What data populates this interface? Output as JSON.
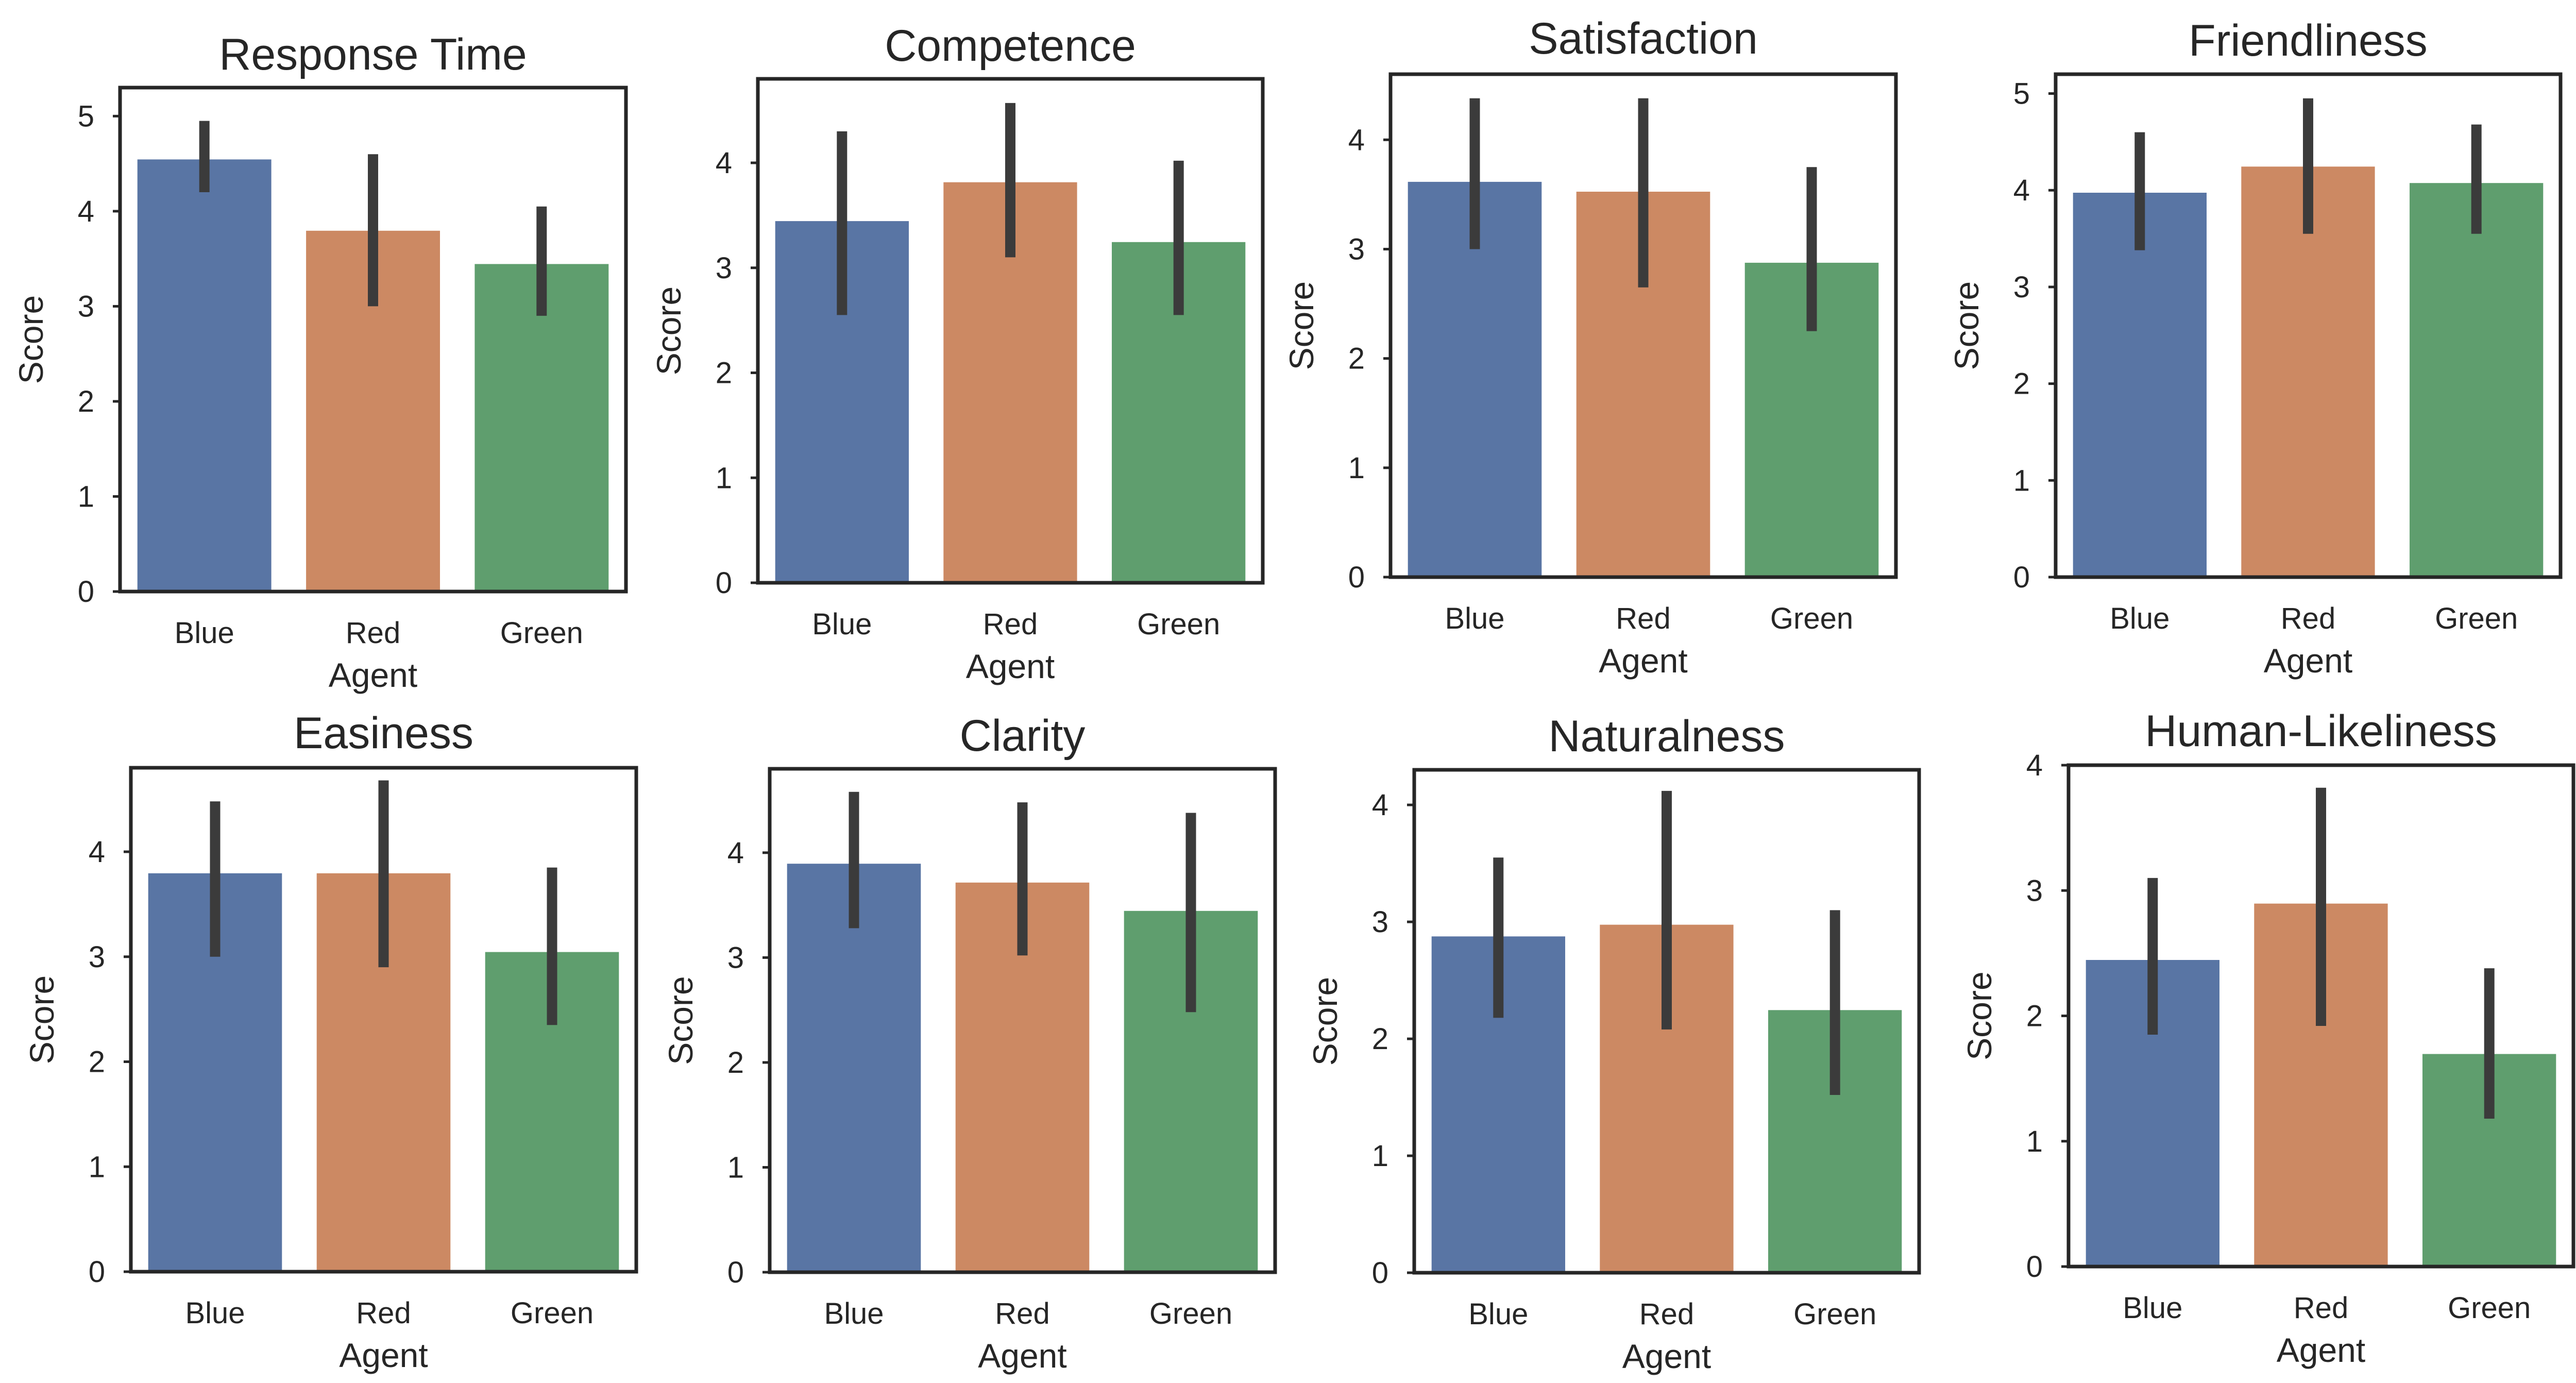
{
  "figure": {
    "colors": {
      "Blue": "#5975a4",
      "Red": "#cc8963",
      "Green": "#5f9e6e",
      "errorbar": "#3b3b3b",
      "frame": "#262626"
    }
  },
  "chart_data": [
    {
      "type": "bar",
      "title": "Response Time",
      "xlabel": "Agent",
      "ylabel": "Score",
      "categories": [
        "Blue",
        "Red",
        "Green"
      ],
      "values": [
        4.55,
        3.8,
        3.45
      ],
      "ci_low": [
        4.2,
        3.0,
        2.9
      ],
      "ci_high": [
        4.95,
        4.6,
        4.05
      ],
      "ylim": [
        0,
        5.3
      ],
      "yticks": [
        0,
        1,
        2,
        3,
        4,
        5
      ]
    },
    {
      "type": "bar",
      "title": "Competence",
      "xlabel": "Agent",
      "ylabel": "Score",
      "categories": [
        "Blue",
        "Red",
        "Green"
      ],
      "values": [
        3.45,
        3.82,
        3.25
      ],
      "ci_low": [
        2.55,
        3.1,
        2.55
      ],
      "ci_high": [
        4.3,
        4.57,
        4.02
      ],
      "ylim": [
        0,
        4.8
      ],
      "yticks": [
        0,
        1,
        2,
        3,
        4
      ]
    },
    {
      "type": "bar",
      "title": "Satisfaction",
      "xlabel": "Agent",
      "ylabel": "Score",
      "categories": [
        "Blue",
        "Red",
        "Green"
      ],
      "values": [
        3.62,
        3.53,
        2.88
      ],
      "ci_low": [
        3.0,
        2.65,
        2.25
      ],
      "ci_high": [
        4.38,
        4.38,
        3.75
      ],
      "ylim": [
        0,
        4.6
      ],
      "yticks": [
        0,
        1,
        2,
        3,
        4
      ]
    },
    {
      "type": "bar",
      "title": "Friendliness",
      "xlabel": "Agent",
      "ylabel": "Score",
      "categories": [
        "Blue",
        "Red",
        "Green"
      ],
      "values": [
        3.98,
        4.25,
        4.08
      ],
      "ci_low": [
        3.38,
        3.55,
        3.55
      ],
      "ci_high": [
        4.6,
        4.95,
        4.68
      ],
      "ylim": [
        0,
        5.2
      ],
      "yticks": [
        0,
        1,
        2,
        3,
        4,
        5
      ]
    },
    {
      "type": "bar",
      "title": "Easiness",
      "xlabel": "Agent",
      "ylabel": "Score",
      "categories": [
        "Blue",
        "Red",
        "Green"
      ],
      "values": [
        3.8,
        3.8,
        3.05
      ],
      "ci_low": [
        3.0,
        2.9,
        2.35
      ],
      "ci_high": [
        4.48,
        4.68,
        3.85
      ],
      "ylim": [
        0,
        4.8
      ],
      "yticks": [
        0,
        1,
        2,
        3,
        4
      ]
    },
    {
      "type": "bar",
      "title": "Clarity",
      "xlabel": "Agent",
      "ylabel": "Score",
      "categories": [
        "Blue",
        "Red",
        "Green"
      ],
      "values": [
        3.9,
        3.72,
        3.45
      ],
      "ci_low": [
        3.28,
        3.02,
        2.48
      ],
      "ci_high": [
        4.58,
        4.48,
        4.38
      ],
      "ylim": [
        0,
        4.8
      ],
      "yticks": [
        0,
        1,
        2,
        3,
        4
      ]
    },
    {
      "type": "bar",
      "title": "Naturalness",
      "xlabel": "Agent",
      "ylabel": "Score",
      "categories": [
        "Blue",
        "Red",
        "Green"
      ],
      "values": [
        2.88,
        2.98,
        2.25
      ],
      "ci_low": [
        2.18,
        2.08,
        1.52
      ],
      "ci_high": [
        3.55,
        4.12,
        3.1
      ],
      "ylim": [
        0,
        4.3
      ],
      "yticks": [
        0,
        1,
        2,
        3,
        4
      ]
    },
    {
      "type": "bar",
      "title": "Human-Likeliness",
      "xlabel": "Agent",
      "ylabel": "Score",
      "categories": [
        "Blue",
        "Red",
        "Green"
      ],
      "values": [
        2.45,
        2.9,
        1.7
      ],
      "ci_low": [
        1.85,
        1.92,
        1.18
      ],
      "ci_high": [
        3.1,
        3.82,
        2.38
      ],
      "ylim": [
        0,
        4.0
      ],
      "yticks": [
        0,
        1,
        2,
        3,
        4
      ]
    }
  ]
}
